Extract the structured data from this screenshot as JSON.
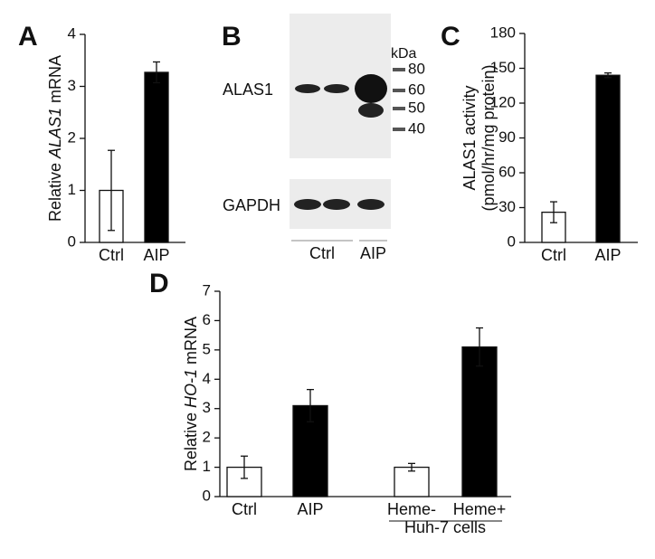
{
  "chart_data": [
    {
      "type": "bar",
      "panel": "A",
      "ylabel": {
        "prefix": "Relative",
        "gene": "ALAS1",
        "suffix": "mRNA"
      },
      "categories": [
        "Ctrl",
        "AIP"
      ],
      "values": [
        1.0,
        3.27
      ],
      "errors": [
        0.77,
        0.2
      ],
      "colors": [
        "#ffffff",
        "#000000"
      ],
      "ylim": [
        0,
        4
      ],
      "yticks": [
        0,
        1,
        2,
        3,
        4
      ]
    },
    {
      "type": "blot",
      "panel": "B",
      "bands": [
        "ALAS1",
        "GAPDH"
      ],
      "markers_title": "kDa",
      "markers": [
        80,
        60,
        50,
        40
      ],
      "groups": [
        "Ctrl",
        "AIP"
      ]
    },
    {
      "type": "bar",
      "panel": "C",
      "ylabel_lines": [
        "ALAS1 activity",
        "(pmol/hr/mg protein)"
      ],
      "categories": [
        "Ctrl",
        "AIP"
      ],
      "values": [
        26,
        144
      ],
      "errors": [
        9,
        2
      ],
      "colors": [
        "#ffffff",
        "#000000"
      ],
      "ylim": [
        0,
        180
      ],
      "yticks": [
        0,
        30,
        60,
        90,
        120,
        150,
        180
      ]
    },
    {
      "type": "bar",
      "panel": "D",
      "ylabel": {
        "prefix": "Relative",
        "gene": "HO-1",
        "suffix": "mRNA"
      },
      "categories": [
        "Ctrl",
        "AIP",
        "Heme-",
        "Heme+"
      ],
      "values": [
        1.0,
        3.1,
        1.0,
        5.1
      ],
      "errors": [
        0.38,
        0.55,
        0.13,
        0.65
      ],
      "colors": [
        "#ffffff",
        "#000000",
        "#ffffff",
        "#000000"
      ],
      "group_label": "Huh-7 cells",
      "ylim": [
        0,
        7
      ],
      "yticks": [
        0,
        1,
        2,
        3,
        4,
        5,
        6,
        7
      ]
    }
  ]
}
